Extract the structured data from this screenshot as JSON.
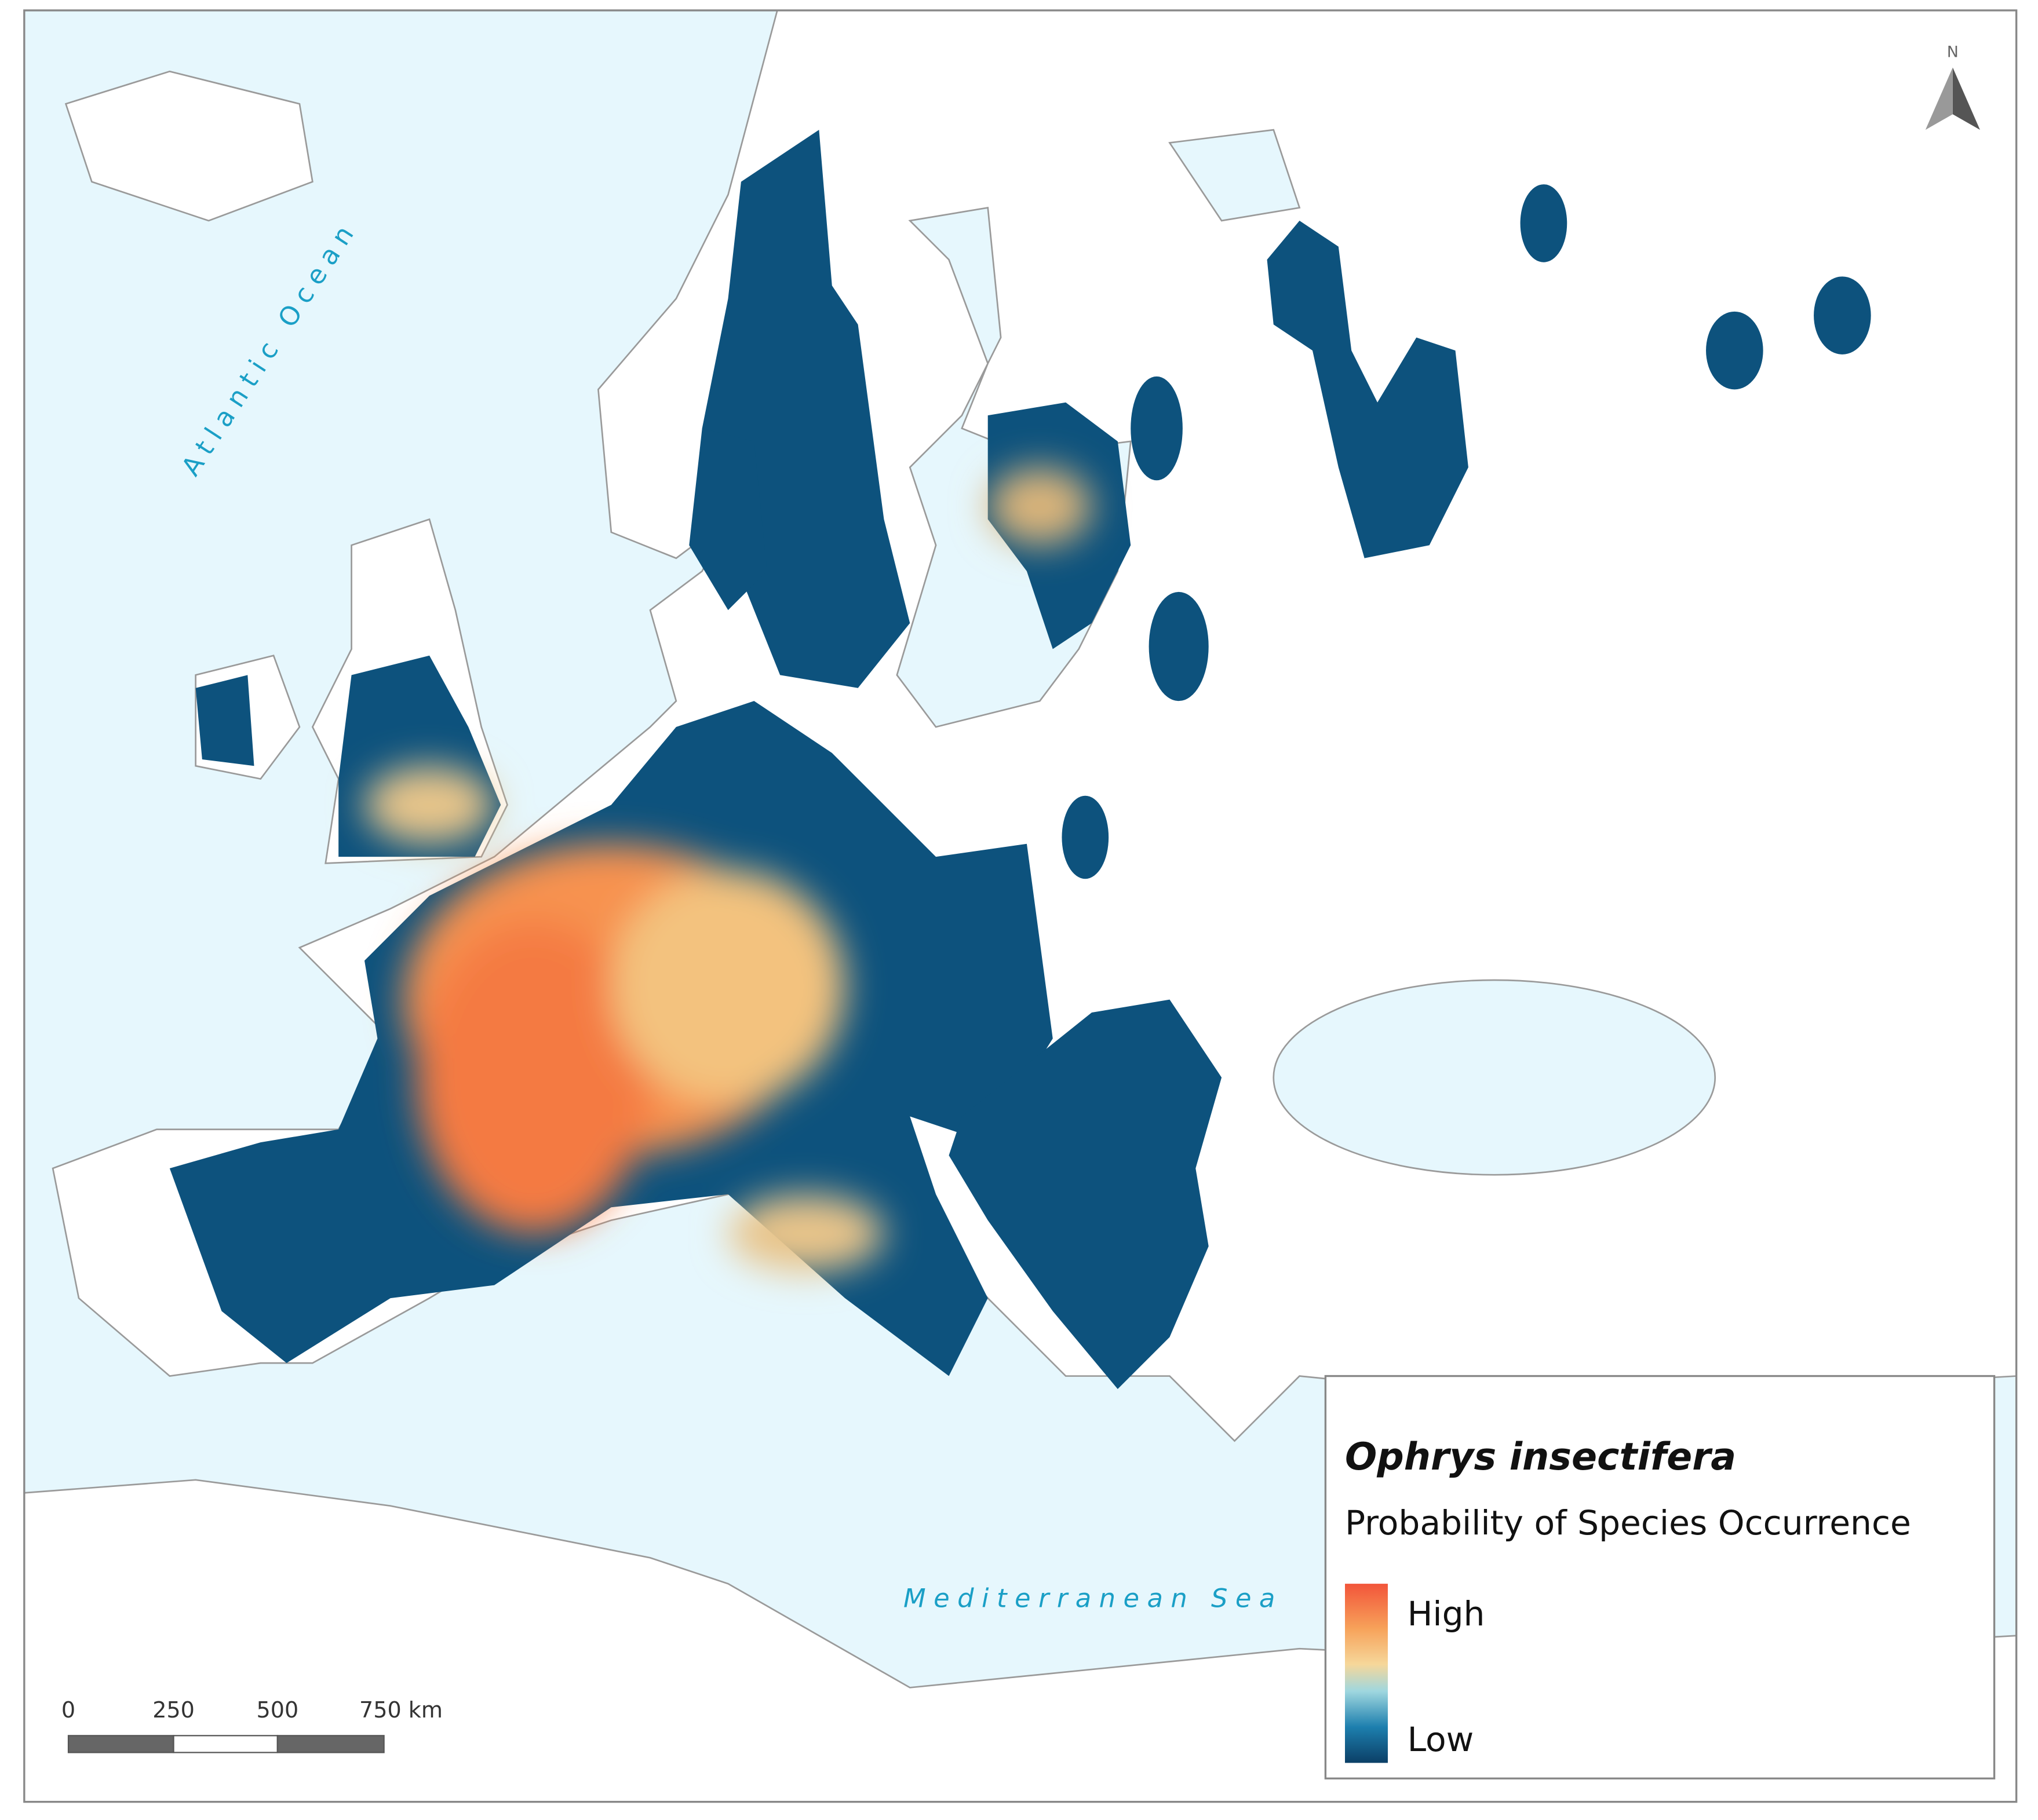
{
  "map": {
    "labels": {
      "atlantic": "Atlantic Ocean",
      "mediterranean": "Mediterranean Sea"
    },
    "north_arrow": "N",
    "legend": {
      "title": "Ophrys insectifera",
      "subtitle": "Probability of Species Occurrence",
      "high": "High",
      "low": "Low"
    },
    "scale_bar": {
      "labels": [
        "0",
        "250",
        "500",
        "750 km"
      ]
    }
  }
}
